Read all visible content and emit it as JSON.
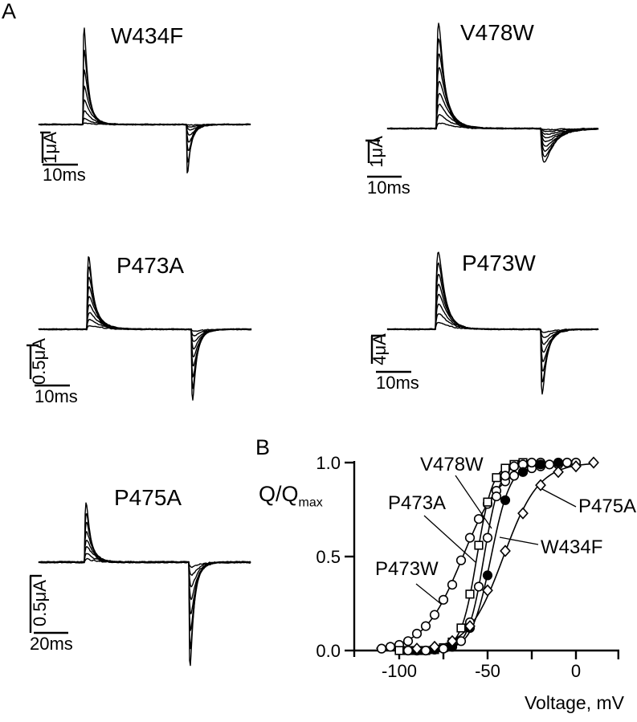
{
  "figure": {
    "panel_a_label": "A",
    "panel_b_label": "B"
  },
  "trace_panels": [
    {
      "id": "W434F",
      "title": "W434F",
      "current_scale": "1μA",
      "time_scale": "10ms",
      "sweeps": 8
    },
    {
      "id": "V478W",
      "title": "V478W",
      "current_scale": "1μA",
      "time_scale": "10ms",
      "sweeps": 9
    },
    {
      "id": "P473A",
      "title": "P473A",
      "current_scale": "0.5μA",
      "time_scale": "10ms",
      "sweeps": 9
    },
    {
      "id": "P473W",
      "title": "P473W",
      "current_scale": "4μA",
      "time_scale": "10ms",
      "sweeps": 8
    },
    {
      "id": "P475A",
      "title": "P475A",
      "current_scale": "0.5μA",
      "time_scale": "20ms",
      "sweeps": 8
    }
  ],
  "chart_data": {
    "type": "scatter",
    "title": "",
    "xlabel": "Voltage, mV",
    "ylabel": "Q/Qmax",
    "ylabel_main": "Q/Q",
    "ylabel_sub": "max",
    "xlim": [
      -125,
      25
    ],
    "ylim": [
      0.0,
      1.0
    ],
    "grid": false,
    "x_ticks": [
      {
        "v": -100,
        "label": "-100"
      },
      {
        "v": -75,
        "label": ""
      },
      {
        "v": -50,
        "label": "-50"
      },
      {
        "v": -25,
        "label": ""
      },
      {
        "v": 0,
        "label": "0"
      },
      {
        "v": 24,
        "label": ""
      }
    ],
    "y_ticks": [
      {
        "v": 0.0,
        "label": "0.0"
      },
      {
        "v": 0.5,
        "label": "0.5"
      },
      {
        "v": 1.0,
        "label": "1.0"
      }
    ],
    "series": [
      {
        "name": "P473W",
        "marker": "open-circle",
        "x": [
          -110,
          -105,
          -100,
          -95,
          -90,
          -85,
          -80,
          -75,
          -70,
          -65,
          -60,
          -55,
          -50,
          -45,
          -40,
          -35,
          -30,
          -25,
          -20,
          -15,
          -10,
          -5,
          0
        ],
        "y": [
          0.01,
          0.02,
          0.03,
          0.05,
          0.09,
          0.13,
          0.19,
          0.27,
          0.35,
          0.48,
          0.6,
          0.7,
          0.78,
          0.85,
          0.9,
          0.93,
          0.95,
          0.97,
          0.98,
          0.99,
          0.99,
          1.0,
          1.0
        ],
        "fit": {
          "v_half": -64,
          "slope": 11,
          "range": [
            -113,
            0
          ]
        }
      },
      {
        "name": "V478W",
        "marker": "open-square",
        "x": [
          -100,
          -95,
          -90,
          -85,
          -80,
          -75,
          -70,
          -65,
          -60,
          -55,
          -50,
          -45,
          -40,
          -35,
          -30
        ],
        "y": [
          0.0,
          0.0,
          0.0,
          0.0,
          0.005,
          0.015,
          0.045,
          0.12,
          0.3,
          0.56,
          0.79,
          0.92,
          0.97,
          0.99,
          1.0
        ],
        "fit": {
          "v_half": -56,
          "slope": 4.5,
          "range": [
            -97,
            -30
          ]
        }
      },
      {
        "name": "P473A",
        "marker": "open-circle",
        "x": [
          -95,
          -90,
          -85,
          -80,
          -75,
          -70,
          -65,
          -60,
          -55,
          -50,
          -45,
          -40,
          -35,
          -30,
          -25,
          -20
        ],
        "y": [
          0.0,
          0.0,
          0.0,
          0.005,
          0.01,
          0.02,
          0.05,
          0.15,
          0.34,
          0.6,
          0.82,
          0.93,
          0.98,
          0.99,
          1.0,
          1.0
        ],
        "fit": {
          "v_half": -52,
          "slope": 4.5,
          "range": [
            -95,
            -18
          ]
        }
      },
      {
        "name": "W434F",
        "marker": "filled-circle",
        "x": [
          -90,
          -80,
          -70,
          -60,
          -50,
          -40,
          -30,
          -20,
          -10
        ],
        "y": [
          0.0,
          0.005,
          0.02,
          0.12,
          0.4,
          0.8,
          0.95,
          0.99,
          1.0
        ],
        "fit": {
          "v_half": -48,
          "slope": 5.5,
          "range": [
            -92,
            -8
          ]
        }
      },
      {
        "name": "P475A",
        "marker": "open-diamond",
        "x": [
          -90,
          -80,
          -70,
          -60,
          -50,
          -40,
          -30,
          -20,
          -10,
          0,
          10
        ],
        "y": [
          0.01,
          0.02,
          0.05,
          0.13,
          0.32,
          0.53,
          0.73,
          0.88,
          0.95,
          0.98,
          1.0
        ],
        "fit": {
          "v_half": -41,
          "slope": 10,
          "range": [
            -93,
            12
          ]
        }
      }
    ]
  }
}
